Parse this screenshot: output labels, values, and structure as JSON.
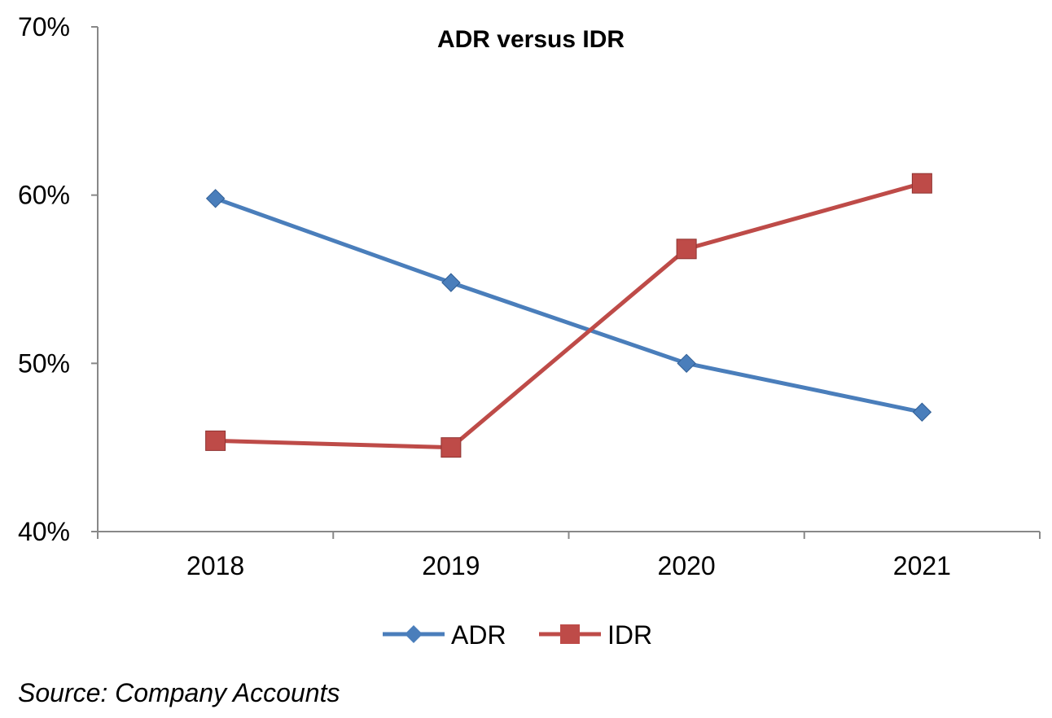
{
  "chart_data": {
    "type": "line",
    "title": "ADR versus IDR",
    "categories": [
      "2018",
      "2019",
      "2020",
      "2021"
    ],
    "ylim": [
      40,
      70
    ],
    "yticks": [
      40,
      50,
      60,
      70
    ],
    "ytick_labels": [
      "40%",
      "50%",
      "60%",
      "70%"
    ],
    "grid": false,
    "legend_position": "bottom",
    "series": [
      {
        "name": "ADR",
        "values": [
          59.8,
          54.8,
          50.0,
          47.1
        ],
        "color": "#4a7ebb",
        "marker": "diamond"
      },
      {
        "name": "IDR",
        "values": [
          45.4,
          45.0,
          56.8,
          60.7
        ],
        "color": "#be4b48",
        "marker": "square"
      }
    ],
    "source": "Source: Company Accounts"
  }
}
